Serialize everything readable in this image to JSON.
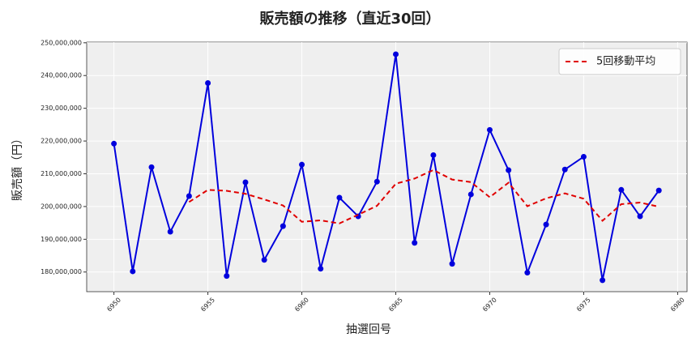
{
  "chart_data": {
    "type": "line",
    "title": "販売額の推移（直近30回）",
    "x_label": "抽選回号",
    "y_label": "販売額（円）",
    "x": [
      6950,
      6951,
      6952,
      6953,
      6954,
      6955,
      6956,
      6957,
      6958,
      6959,
      6960,
      6961,
      6962,
      6963,
      6964,
      6965,
      6966,
      6967,
      6968,
      6969,
      6970,
      6971,
      6972,
      6973,
      6974,
      6975,
      6976,
      6977,
      6978,
      6979
    ],
    "series": [
      {
        "color": "#0000dd",
        "marker": true,
        "dashed": false,
        "values": [
          219200000,
          180200000,
          212000000,
          192300000,
          203200000,
          237700000,
          178800000,
          207400000,
          183700000,
          194000000,
          212800000,
          181000000,
          202700000,
          197000000,
          207600000,
          246500000,
          188900000,
          215700000,
          182500000,
          203700000,
          223400000,
          211100000,
          179800000,
          194500000,
          211300000,
          215200000,
          177500000,
          205100000,
          197000000,
          204900000
        ]
      },
      {
        "name": "5回移動平均",
        "color": "#e00000",
        "marker": false,
        "dashed": true,
        "values": [
          null,
          null,
          null,
          null,
          201380000,
          205080000,
          204800000,
          203880000,
          202160000,
          200320000,
          195340000,
          195780000,
          194840000,
          197500000,
          200220000,
          206960000,
          208540000,
          211140000,
          208240000,
          207460000,
          202840000,
          207280000,
          200100000,
          202500000,
          204020000,
          202380000,
          195660000,
          200720000,
          201220000,
          199940000
        ]
      }
    ],
    "xlim": [
      6948.55,
      6980.5
    ],
    "xticks": [
      6950,
      6955,
      6960,
      6965,
      6970,
      6975,
      6980
    ],
    "ylim": [
      174000000,
      250200000
    ],
    "yticks": [
      {
        "value": 180000000,
        "label": "180,000,000"
      },
      {
        "value": 190000000,
        "label": "190,000,000"
      },
      {
        "value": 200000000,
        "label": "200,000,000"
      },
      {
        "value": 210000000,
        "label": "210,000,000"
      },
      {
        "value": 220000000,
        "label": "220,000,000"
      },
      {
        "value": 230000000,
        "label": "230,000,000"
      },
      {
        "value": 240000000,
        "label": "240,000,000"
      },
      {
        "value": 250000000,
        "label": "250,000,000"
      }
    ],
    "grid": true,
    "legend": "upper right"
  }
}
